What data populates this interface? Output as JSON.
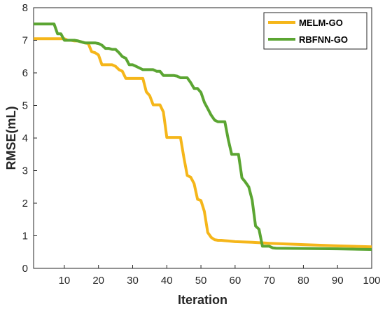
{
  "chart_data": {
    "type": "line",
    "title": "",
    "xlabel": "Iteration",
    "ylabel": "RMSE(mL)",
    "xlim": [
      1,
      100
    ],
    "ylim": [
      0,
      8
    ],
    "xticks": [
      10,
      20,
      30,
      40,
      50,
      60,
      70,
      80,
      90,
      100
    ],
    "yticks": [
      0,
      1,
      2,
      3,
      4,
      5,
      6,
      7,
      8
    ],
    "grid": false,
    "legend_position": "top-right",
    "series": [
      {
        "name": "MELM-GO",
        "color": "#F5B61A",
        "x": [
          1,
          10,
          11,
          12,
          13,
          14,
          15,
          16,
          17,
          18,
          19,
          20,
          21,
          22,
          23,
          24,
          25,
          26,
          27,
          28,
          29,
          30,
          31,
          32,
          33,
          34,
          35,
          36,
          37,
          38,
          39,
          40,
          41,
          42,
          43,
          44,
          45,
          46,
          47,
          48,
          49,
          50,
          51,
          52,
          53,
          54,
          55,
          56,
          57,
          58,
          59,
          60,
          65,
          70,
          80,
          90,
          100
        ],
        "y": [
          7.05,
          7.05,
          7.0,
          7.0,
          6.98,
          6.98,
          6.95,
          6.92,
          6.9,
          6.65,
          6.62,
          6.55,
          6.25,
          6.25,
          6.25,
          6.25,
          6.2,
          6.1,
          6.05,
          5.83,
          5.83,
          5.83,
          5.83,
          5.83,
          5.83,
          5.42,
          5.3,
          5.02,
          5.02,
          5.02,
          4.8,
          4.02,
          4.02,
          4.02,
          4.02,
          4.02,
          3.4,
          2.85,
          2.8,
          2.6,
          2.12,
          2.08,
          1.75,
          1.1,
          0.95,
          0.88,
          0.86,
          0.86,
          0.85,
          0.84,
          0.83,
          0.82,
          0.8,
          0.77,
          0.73,
          0.69,
          0.66
        ]
      },
      {
        "name": "RBFNN-GO",
        "color": "#5BA532",
        "x": [
          1,
          7,
          8,
          9,
          10,
          11,
          12,
          13,
          14,
          15,
          16,
          17,
          18,
          19,
          20,
          21,
          22,
          23,
          24,
          25,
          26,
          27,
          28,
          29,
          30,
          31,
          32,
          33,
          34,
          35,
          36,
          37,
          38,
          39,
          40,
          41,
          42,
          43,
          44,
          45,
          46,
          47,
          48,
          49,
          50,
          51,
          52,
          53,
          54,
          55,
          56,
          57,
          58,
          59,
          60,
          61,
          62,
          63,
          64,
          65,
          66,
          67,
          68,
          69,
          70,
          71,
          72,
          80,
          90,
          100
        ],
        "y": [
          7.5,
          7.5,
          7.2,
          7.2,
          7.0,
          7.0,
          7.0,
          7.0,
          6.98,
          6.95,
          6.92,
          6.92,
          6.92,
          6.92,
          6.9,
          6.85,
          6.75,
          6.75,
          6.72,
          6.72,
          6.62,
          6.5,
          6.45,
          6.25,
          6.25,
          6.2,
          6.15,
          6.1,
          6.1,
          6.1,
          6.1,
          6.05,
          6.05,
          5.92,
          5.92,
          5.92,
          5.92,
          5.9,
          5.85,
          5.85,
          5.85,
          5.7,
          5.52,
          5.52,
          5.4,
          5.1,
          4.9,
          4.7,
          4.55,
          4.5,
          4.5,
          4.5,
          3.95,
          3.5,
          3.5,
          3.5,
          2.78,
          2.65,
          2.5,
          2.1,
          1.3,
          1.2,
          0.68,
          0.68,
          0.68,
          0.63,
          0.62,
          0.61,
          0.6,
          0.58
        ]
      }
    ]
  }
}
